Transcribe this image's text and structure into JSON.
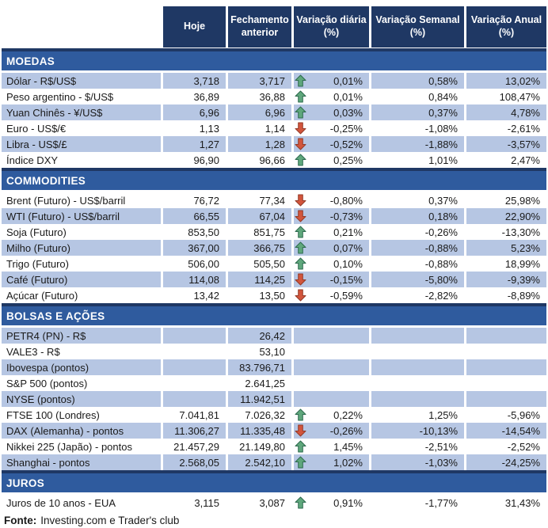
{
  "header": {
    "columns": [
      "Hoje",
      "Fechamento anterior",
      "Variação diária (%)",
      "Variação Semanal (%)",
      "Variação Anual (%)"
    ]
  },
  "sections": [
    {
      "title": "MOEDAS",
      "rows": [
        {
          "label": "Dólar - R$/US$",
          "hoje": "3,718",
          "fechamento": "3,717",
          "arrow": "up",
          "diaria": "0,01%",
          "semanal": "0,58%",
          "anual": "13,02%"
        },
        {
          "label": "Peso argentino - $/US$",
          "hoje": "36,89",
          "fechamento": "36,88",
          "arrow": "up",
          "diaria": "0,01%",
          "semanal": "0,84%",
          "anual": "108,47%"
        },
        {
          "label": "Yuan Chinês - ¥/US$",
          "hoje": "6,96",
          "fechamento": "6,96",
          "arrow": "up",
          "diaria": "0,03%",
          "semanal": "0,37%",
          "anual": "4,78%"
        },
        {
          "label": "Euro - US$/€",
          "hoje": "1,13",
          "fechamento": "1,14",
          "arrow": "down",
          "diaria": "-0,25%",
          "semanal": "-1,08%",
          "anual": "-2,61%"
        },
        {
          "label": "Libra - US$/£",
          "hoje": "1,27",
          "fechamento": "1,28",
          "arrow": "down",
          "diaria": "-0,52%",
          "semanal": "-1,88%",
          "anual": "-3,57%"
        },
        {
          "label": "Índice DXY",
          "hoje": "96,90",
          "fechamento": "96,66",
          "arrow": "up",
          "diaria": "0,25%",
          "semanal": "1,01%",
          "anual": "2,47%"
        }
      ]
    },
    {
      "title": "COMMODITIES",
      "rows": [
        {
          "label": "Brent (Futuro) - US$/barril",
          "hoje": "76,72",
          "fechamento": "77,34",
          "arrow": "down",
          "diaria": "-0,80%",
          "semanal": "0,37%",
          "anual": "25,98%"
        },
        {
          "label": "WTI (Futuro) - US$/barril",
          "hoje": "66,55",
          "fechamento": "67,04",
          "arrow": "down",
          "diaria": "-0,73%",
          "semanal": "0,18%",
          "anual": "22,90%"
        },
        {
          "label": "Soja (Futuro)",
          "hoje": "853,50",
          "fechamento": "851,75",
          "arrow": "up",
          "diaria": "0,21%",
          "semanal": "-0,26%",
          "anual": "-13,30%"
        },
        {
          "label": "Milho (Futuro)",
          "hoje": "367,00",
          "fechamento": "366,75",
          "arrow": "up",
          "diaria": "0,07%",
          "semanal": "-0,88%",
          "anual": "5,23%"
        },
        {
          "label": "Trigo (Futuro)",
          "hoje": "506,00",
          "fechamento": "505,50",
          "arrow": "up",
          "diaria": "0,10%",
          "semanal": "-0,88%",
          "anual": "18,99%"
        },
        {
          "label": "Café (Futuro)",
          "hoje": "114,08",
          "fechamento": "114,25",
          "arrow": "down",
          "diaria": "-0,15%",
          "semanal": "-5,80%",
          "anual": "-9,39%"
        },
        {
          "label": "Açúcar (Futuro)",
          "hoje": "13,42",
          "fechamento": "13,50",
          "arrow": "down",
          "diaria": "-0,59%",
          "semanal": "-2,82%",
          "anual": "-8,89%"
        }
      ]
    },
    {
      "title": "BOLSAS E AÇÕES",
      "rows": [
        {
          "label": "PETR4 (PN) - R$",
          "hoje": "",
          "fechamento": "26,42",
          "arrow": null,
          "diaria": "",
          "semanal": "",
          "anual": ""
        },
        {
          "label": "VALE3 - R$",
          "hoje": "",
          "fechamento": "53,10",
          "arrow": null,
          "diaria": "",
          "semanal": "",
          "anual": ""
        },
        {
          "label": "Ibovespa (pontos)",
          "hoje": "",
          "fechamento": "83.796,71",
          "arrow": null,
          "diaria": "",
          "semanal": "",
          "anual": ""
        },
        {
          "label": "S&P 500 (pontos)",
          "hoje": "",
          "fechamento": "2.641,25",
          "arrow": null,
          "diaria": "",
          "semanal": "",
          "anual": ""
        },
        {
          "label": "NYSE (pontos)",
          "hoje": "",
          "fechamento": "11.942,51",
          "arrow": null,
          "diaria": "",
          "semanal": "",
          "anual": ""
        },
        {
          "label": "FTSE 100 (Londres)",
          "hoje": "7.041,81",
          "fechamento": "7.026,32",
          "arrow": "up",
          "diaria": "0,22%",
          "semanal": "1,25%",
          "anual": "-5,96%"
        },
        {
          "label": "DAX (Alemanha) - pontos",
          "hoje": "11.306,27",
          "fechamento": "11.335,48",
          "arrow": "down",
          "diaria": "-0,26%",
          "semanal": "-10,13%",
          "anual": "-14,54%"
        },
        {
          "label": "Nikkei 225 (Japão) - pontos",
          "hoje": "21.457,29",
          "fechamento": "21.149,80",
          "arrow": "up",
          "diaria": "1,45%",
          "semanal": "-2,51%",
          "anual": "-2,52%"
        },
        {
          "label": "Shanghai - pontos",
          "hoje": "2.568,05",
          "fechamento": "2.542,10",
          "arrow": "up",
          "diaria": "1,02%",
          "semanal": "-1,03%",
          "anual": "-24,25%"
        }
      ]
    },
    {
      "title": "JUROS",
      "rows": [
        {
          "label": "Juros de 10 anos - EUA",
          "hoje": "3,115",
          "fechamento": "3,087",
          "arrow": "up",
          "diaria": "0,91%",
          "semanal": "-1,77%",
          "anual": "31,43%"
        }
      ]
    }
  ],
  "footer": {
    "label": "Fonte:",
    "text": "Investing.com e Trader's club"
  },
  "colors": {
    "header_bg": "#1F3864",
    "section_bg": "#2F5B9E",
    "row_alt_bg": "#B6C6E3",
    "up_arrow": "#5FA77C",
    "down_arrow": "#D2553C"
  }
}
